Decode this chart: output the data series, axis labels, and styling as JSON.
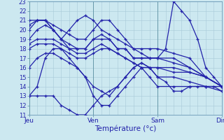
{
  "xlabel": "Température (°c)",
  "xlim": [
    0,
    72
  ],
  "ylim": [
    11,
    23
  ],
  "yticks": [
    11,
    12,
    13,
    14,
    15,
    16,
    17,
    18,
    19,
    20,
    21,
    22,
    23
  ],
  "xtick_positions": [
    0,
    24,
    48,
    72
  ],
  "xtick_labels": [
    "Jeu",
    "Ven",
    "Sam",
    "Dim"
  ],
  "bg_color": "#cce8f0",
  "grid_color": "#a8c8d8",
  "line_color": "#2222aa",
  "marker": "+",
  "series_x": [
    [
      0,
      3,
      6,
      9,
      12,
      15,
      18,
      21,
      24,
      27,
      30,
      33,
      36,
      39,
      42,
      45,
      48,
      54,
      60,
      66,
      72
    ],
    [
      0,
      3,
      6,
      9,
      12,
      15,
      18,
      21,
      24,
      27,
      30,
      33,
      36,
      39,
      42,
      45,
      48,
      54,
      60,
      66,
      72
    ],
    [
      0,
      3,
      6,
      9,
      12,
      15,
      18,
      21,
      24,
      27,
      30,
      33,
      36,
      39,
      42,
      45,
      48,
      54,
      60,
      66,
      72
    ],
    [
      0,
      3,
      6,
      9,
      12,
      15,
      18,
      21,
      24,
      27,
      30,
      33,
      36,
      39,
      42,
      45,
      48,
      54,
      60,
      66,
      72
    ],
    [
      0,
      3,
      6,
      9,
      12,
      15,
      18,
      21,
      24,
      27,
      30,
      33,
      36,
      39,
      42,
      45,
      48,
      54,
      60,
      66,
      72
    ],
    [
      0,
      3,
      6,
      9,
      12,
      15,
      18,
      21,
      24,
      27,
      30,
      33,
      36,
      39,
      42,
      45,
      48,
      54,
      60,
      66,
      72
    ],
    [
      0,
      3,
      6,
      9,
      12,
      15,
      18,
      21,
      24,
      27,
      30,
      33,
      36,
      39,
      42,
      45,
      48,
      54,
      60,
      66,
      72
    ],
    [
      0,
      3,
      6,
      9,
      12,
      15,
      18,
      21,
      24,
      27,
      30,
      33,
      36,
      39,
      42,
      45,
      48,
      51,
      54,
      57,
      60,
      63,
      66,
      69,
      72
    ],
    [
      0,
      3,
      6,
      9,
      12,
      15,
      18,
      21,
      24,
      27,
      30,
      33,
      36,
      39,
      42,
      45,
      48,
      51,
      54,
      57,
      60,
      63,
      66,
      69,
      72
    ]
  ],
  "series": [
    [
      13,
      14,
      17,
      18,
      18,
      17,
      16,
      15,
      13,
      12,
      12,
      13,
      14,
      15,
      16,
      15,
      14,
      14,
      14,
      14,
      14
    ],
    [
      20,
      21,
      21,
      20,
      19,
      18,
      18,
      18,
      19,
      19,
      19,
      18,
      18,
      17,
      17,
      17,
      17,
      17,
      16,
      15,
      14
    ],
    [
      19,
      20,
      20.5,
      20,
      19,
      18.5,
      18,
      18,
      19,
      19.5,
      19,
      18,
      18,
      17,
      17,
      17,
      17,
      16.5,
      16,
      15,
      14
    ],
    [
      20.5,
      21,
      21,
      20.5,
      20,
      19.5,
      19,
      19,
      20,
      21,
      21,
      20,
      19,
      18,
      18,
      18,
      18,
      17.5,
      17,
      15,
      14
    ],
    [
      18,
      18.5,
      18.5,
      18.5,
      18,
      17.5,
      17,
      17,
      17.5,
      18,
      18,
      17.5,
      17,
      16.5,
      16,
      16,
      16,
      16,
      15.5,
      15,
      14
    ],
    [
      16,
      17,
      17.5,
      17.5,
      17,
      16.5,
      16,
      15,
      14,
      13.5,
      13,
      14,
      15,
      16,
      16.5,
      16,
      15,
      15,
      14.5,
      14,
      13.5
    ],
    [
      18.5,
      19,
      19,
      19,
      18.5,
      18,
      17.5,
      17.5,
      18,
      18.5,
      18,
      17.5,
      17,
      16.5,
      16,
      16,
      16,
      15.5,
      15.5,
      15,
      14
    ],
    [
      21,
      21,
      21,
      20,
      19,
      20,
      21,
      21.5,
      21,
      20,
      19.5,
      19,
      18.5,
      18,
      17.5,
      17,
      17,
      18,
      23,
      22,
      21,
      19,
      16,
      15,
      14
    ],
    [
      13,
      13,
      13,
      13,
      12,
      11.5,
      11,
      11,
      12,
      13,
      13.5,
      14,
      15,
      16,
      16.5,
      16,
      15,
      14.5,
      13.5,
      13.5,
      14,
      14,
      14,
      14,
      13.5
    ]
  ]
}
